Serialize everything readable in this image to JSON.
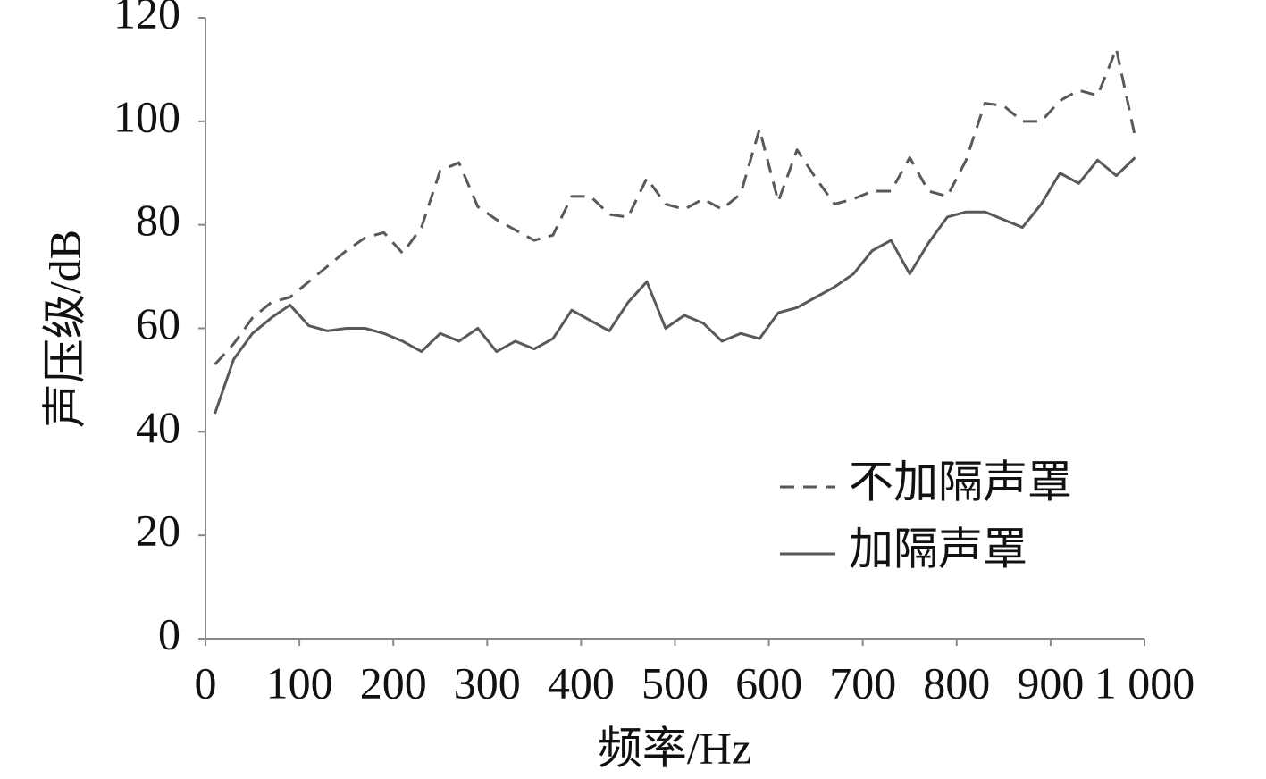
{
  "chart_data": {
    "type": "line",
    "xlabel": "频率/Hz",
    "ylabel": "声压级/dB",
    "x": [
      10,
      30,
      50,
      70,
      90,
      110,
      130,
      150,
      170,
      190,
      210,
      230,
      250,
      270,
      290,
      310,
      330,
      350,
      370,
      390,
      410,
      430,
      450,
      470,
      490,
      510,
      530,
      550,
      570,
      590,
      610,
      630,
      650,
      670,
      690,
      710,
      730,
      750,
      770,
      790,
      810,
      830,
      850,
      870,
      890,
      910,
      930,
      950,
      970,
      990
    ],
    "series": [
      {
        "name": "不加隔声罩",
        "color": "#595959",
        "dash": true,
        "values": [
          53,
          57,
          62,
          65,
          66,
          69,
          72,
          75,
          77.5,
          78.5,
          74.5,
          79.5,
          90.5,
          92,
          83.5,
          81,
          79,
          77,
          78,
          85.5,
          85.5,
          82,
          81.5,
          89,
          84,
          83,
          85,
          83,
          86,
          98.5,
          84.5,
          94.5,
          89,
          84,
          85,
          86.5,
          86.5,
          93,
          86.5,
          85.5,
          92.5,
          103.5,
          103,
          100,
          100,
          104,
          106,
          105,
          114,
          97
        ]
      },
      {
        "name": "加隔声罩",
        "color": "#595959",
        "dash": false,
        "values": [
          43.5,
          54,
          59,
          62,
          64.5,
          60.5,
          59.5,
          60,
          60,
          59,
          57.5,
          55.5,
          59,
          57.5,
          60,
          55.5,
          57.5,
          56,
          58,
          63.5,
          61.5,
          59.5,
          65,
          69,
          60,
          62.5,
          61,
          57.5,
          59,
          58,
          63,
          64,
          66,
          68,
          70.5,
          75,
          77,
          70.5,
          76.5,
          81.5,
          82.5,
          82.5,
          81,
          79.5,
          84,
          90,
          88,
          92.5,
          89.5,
          93
        ]
      }
    ],
    "xlim": [
      0,
      1000
    ],
    "xticks": [
      0,
      100,
      200,
      300,
      400,
      500,
      600,
      700,
      800,
      900,
      {
        "value": 1000,
        "label": "1 000"
      }
    ],
    "ylim": [
      0,
      120
    ],
    "yticks": [
      0,
      20,
      40,
      60,
      80,
      100,
      120
    ],
    "grid": false,
    "legend": "lower right"
  }
}
